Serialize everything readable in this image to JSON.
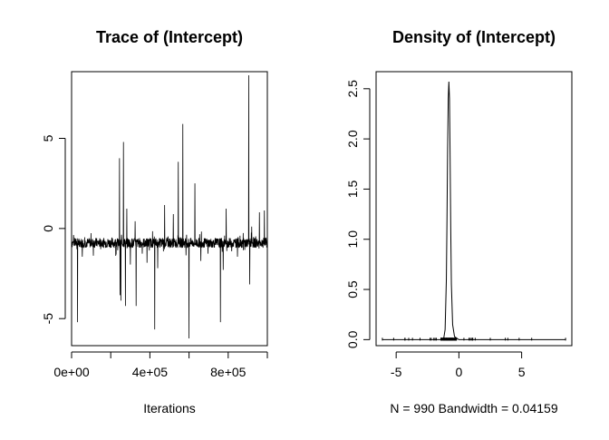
{
  "chart_data": [
    {
      "type": "line",
      "title": "Trace of (Intercept)",
      "xlabel": "Iterations",
      "ylabel": "",
      "xlim": [
        0,
        1000000
      ],
      "ylim": [
        -6.5,
        8.7
      ],
      "x_ticks": [
        0,
        400000,
        800000
      ],
      "x_tick_labels": [
        "0e+00",
        "4e+05",
        "8e+05"
      ],
      "y_ticks": [
        -5,
        0,
        5
      ],
      "y_tick_labels": [
        "-5",
        "0",
        "5"
      ],
      "grid": false,
      "series": [
        {
          "baseline": -0.8,
          "spikes": [
            {
              "x": 30000,
              "y": -5.2
            },
            {
              "x": 245000,
              "y": 3.9
            },
            {
              "x": 248000,
              "y": -3.7
            },
            {
              "x": 252000,
              "y": -4.0
            },
            {
              "x": 265000,
              "y": 4.8
            },
            {
              "x": 275000,
              "y": -4.3
            },
            {
              "x": 282000,
              "y": 1.1
            },
            {
              "x": 300000,
              "y": -2.0
            },
            {
              "x": 325000,
              "y": 0.4
            },
            {
              "x": 330000,
              "y": -4.3
            },
            {
              "x": 385000,
              "y": -1.9
            },
            {
              "x": 425000,
              "y": -5.6
            },
            {
              "x": 440000,
              "y": -2.2
            },
            {
              "x": 475000,
              "y": 1.3
            },
            {
              "x": 520000,
              "y": 0.8
            },
            {
              "x": 545000,
              "y": 3.7
            },
            {
              "x": 568000,
              "y": 5.8
            },
            {
              "x": 600000,
              "y": -6.1
            },
            {
              "x": 630000,
              "y": 2.5
            },
            {
              "x": 660000,
              "y": -1.8
            },
            {
              "x": 760000,
              "y": -5.2
            },
            {
              "x": 775000,
              "y": -2.3
            },
            {
              "x": 790000,
              "y": 1.1
            },
            {
              "x": 905000,
              "y": 8.5
            },
            {
              "x": 910000,
              "y": -3.1
            },
            {
              "x": 960000,
              "y": 0.9
            },
            {
              "x": 985000,
              "y": 1.0
            }
          ]
        }
      ]
    },
    {
      "type": "line",
      "title": "Density of (Intercept)",
      "xlabel": "N = 990   Bandwidth = 0.04159",
      "ylabel": "",
      "xlim": [
        -6.6,
        9.0
      ],
      "ylim": [
        -0.06,
        2.67
      ],
      "x_ticks": [
        -5,
        0,
        5
      ],
      "x_tick_labels": [
        "-5",
        "0",
        "5"
      ],
      "y_ticks": [
        0.0,
        0.5,
        1.0,
        1.5,
        2.0,
        2.5
      ],
      "y_tick_labels": [
        "0.0",
        "0.5",
        "1.0",
        "1.5",
        "2.0",
        "2.5"
      ],
      "grid": false,
      "peak": {
        "x": -0.8,
        "y": 2.57
      },
      "density_curve": [
        {
          "x": -6.1,
          "y": 0.0
        },
        {
          "x": -1.4,
          "y": 0.0
        },
        {
          "x": -1.2,
          "y": 0.02
        },
        {
          "x": -1.1,
          "y": 0.1
        },
        {
          "x": -1.0,
          "y": 0.6
        },
        {
          "x": -0.95,
          "y": 1.2
        },
        {
          "x": -0.9,
          "y": 1.9
        },
        {
          "x": -0.85,
          "y": 2.4
        },
        {
          "x": -0.8,
          "y": 2.57
        },
        {
          "x": -0.75,
          "y": 2.4
        },
        {
          "x": -0.7,
          "y": 1.8
        },
        {
          "x": -0.65,
          "y": 1.1
        },
        {
          "x": -0.6,
          "y": 0.55
        },
        {
          "x": -0.5,
          "y": 0.15
        },
        {
          "x": -0.35,
          "y": 0.03
        },
        {
          "x": 0.0,
          "y": 0.0
        },
        {
          "x": 8.5,
          "y": 0.0
        }
      ],
      "rug": [
        -6.1,
        -5.2,
        -4.3,
        -4.3,
        -4.0,
        -3.7,
        -3.1,
        -2.3,
        -2.2,
        -2.0,
        -1.9,
        -1.8,
        0.4,
        0.8,
        0.9,
        1.0,
        1.1,
        1.1,
        1.3,
        2.5,
        3.7,
        3.9,
        4.8,
        5.8,
        8.5
      ]
    }
  ]
}
